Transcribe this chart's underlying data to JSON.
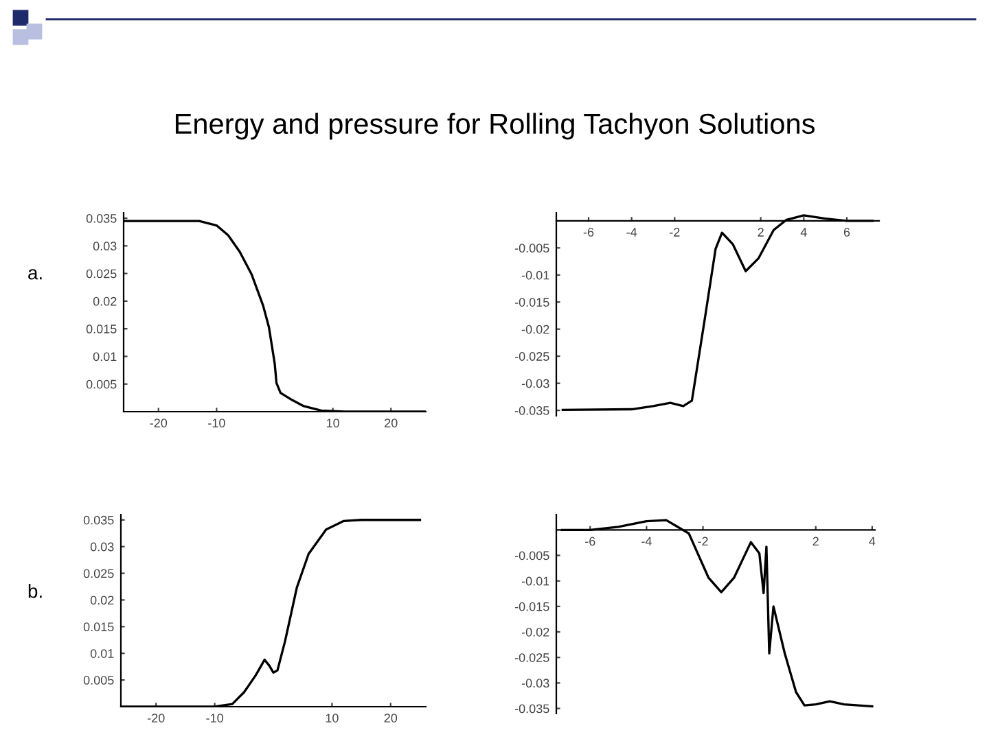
{
  "chart_data": [
    {
      "type": "line",
      "title": "Energy and pressure for Rolling Tachyon Solutions",
      "annotations": [
        "a."
      ],
      "xlim": [
        -26,
        26
      ],
      "ylim": [
        0,
        0.036
      ],
      "xticks": [
        -20,
        -10,
        10,
        20
      ],
      "yticks": [
        0.005,
        0.01,
        0.015,
        0.02,
        0.025,
        0.03,
        0.035
      ],
      "grid": false,
      "legend": false,
      "series": [
        {
          "color": "#000000",
          "x": [
            -26,
            -13,
            -10,
            -8,
            -6,
            -4,
            -2,
            -1,
            0,
            0.3,
            1,
            3,
            5,
            8,
            12,
            26
          ],
          "values": [
            0.0345,
            0.0345,
            0.0337,
            0.0319,
            0.0289,
            0.0249,
            0.0192,
            0.0153,
            0.0087,
            0.0052,
            0.0034,
            0.0021,
            0.001,
            0.0002,
            0,
            0
          ]
        }
      ]
    },
    {
      "type": "line",
      "xlim": [
        -7.5,
        7.5
      ],
      "ylim": [
        -0.036,
        0.0015
      ],
      "xticks": [
        -6,
        -4,
        -2,
        2,
        4,
        6
      ],
      "yticks": [
        -0.005,
        -0.01,
        -0.015,
        -0.02,
        -0.025,
        -0.03,
        -0.035
      ],
      "grid": false,
      "legend": false,
      "series": [
        {
          "color": "#000000",
          "x": [
            -7.2,
            -4,
            -3,
            -2.2,
            -1.6,
            -1.2,
            -0.6,
            -0.1,
            0.2,
            0.7,
            1.3,
            1.9,
            2.6,
            3.2,
            4,
            5,
            6,
            7.2
          ],
          "values": [
            -0.0349,
            -0.0348,
            -0.0342,
            -0.0336,
            -0.0342,
            -0.0332,
            -0.0181,
            -0.0052,
            -0.0022,
            -0.0043,
            -0.0093,
            -0.0069,
            -0.0017,
            0.0002,
            0.001,
            0.0004,
            0,
            0
          ]
        }
      ]
    },
    {
      "type": "line",
      "annotations": [
        "b."
      ],
      "xlim": [
        -26,
        26
      ],
      "ylim": [
        0,
        0.036
      ],
      "xticks": [
        -20,
        -10,
        10,
        20
      ],
      "yticks": [
        0.005,
        0.01,
        0.015,
        0.02,
        0.025,
        0.03,
        0.035
      ],
      "grid": false,
      "legend": false,
      "series": [
        {
          "color": "#000000",
          "x": [
            -26,
            -10,
            -7,
            -5,
            -3,
            -1.5,
            -0.7,
            0,
            0.7,
            2,
            4,
            6,
            9,
            12,
            15,
            25
          ],
          "values": [
            0,
            0,
            0.0005,
            0.0027,
            0.0059,
            0.0088,
            0.0077,
            0.0064,
            0.0068,
            0.0123,
            0.0223,
            0.0286,
            0.0332,
            0.0348,
            0.035,
            0.035
          ]
        }
      ]
    },
    {
      "type": "line",
      "xlim": [
        -7.2,
        4.1
      ],
      "ylim": [
        -0.036,
        0.003
      ],
      "xticks": [
        -6,
        -4,
        -2,
        2,
        4
      ],
      "yticks": [
        -0.005,
        -0.01,
        -0.015,
        -0.02,
        -0.025,
        -0.03,
        -0.035
      ],
      "grid": false,
      "legend": false,
      "series": [
        {
          "color": "#000000",
          "x": [
            -7,
            -6,
            -5,
            -4,
            -3.3,
            -2.5,
            -1.8,
            -1.35,
            -0.9,
            -0.3,
            0,
            0.15,
            0.25,
            0.35,
            0.5,
            0.9,
            1.3,
            1.6,
            2,
            2.5,
            3,
            4
          ],
          "values": [
            0,
            0,
            0.0006,
            0.0017,
            0.0019,
            -0.0007,
            -0.0094,
            -0.0122,
            -0.0094,
            -0.0024,
            -0.0046,
            -0.0124,
            -0.0033,
            -0.0242,
            -0.015,
            -0.0242,
            -0.0318,
            -0.0344,
            -0.0342,
            -0.0336,
            -0.0342,
            -0.0346
          ]
        }
      ]
    }
  ]
}
